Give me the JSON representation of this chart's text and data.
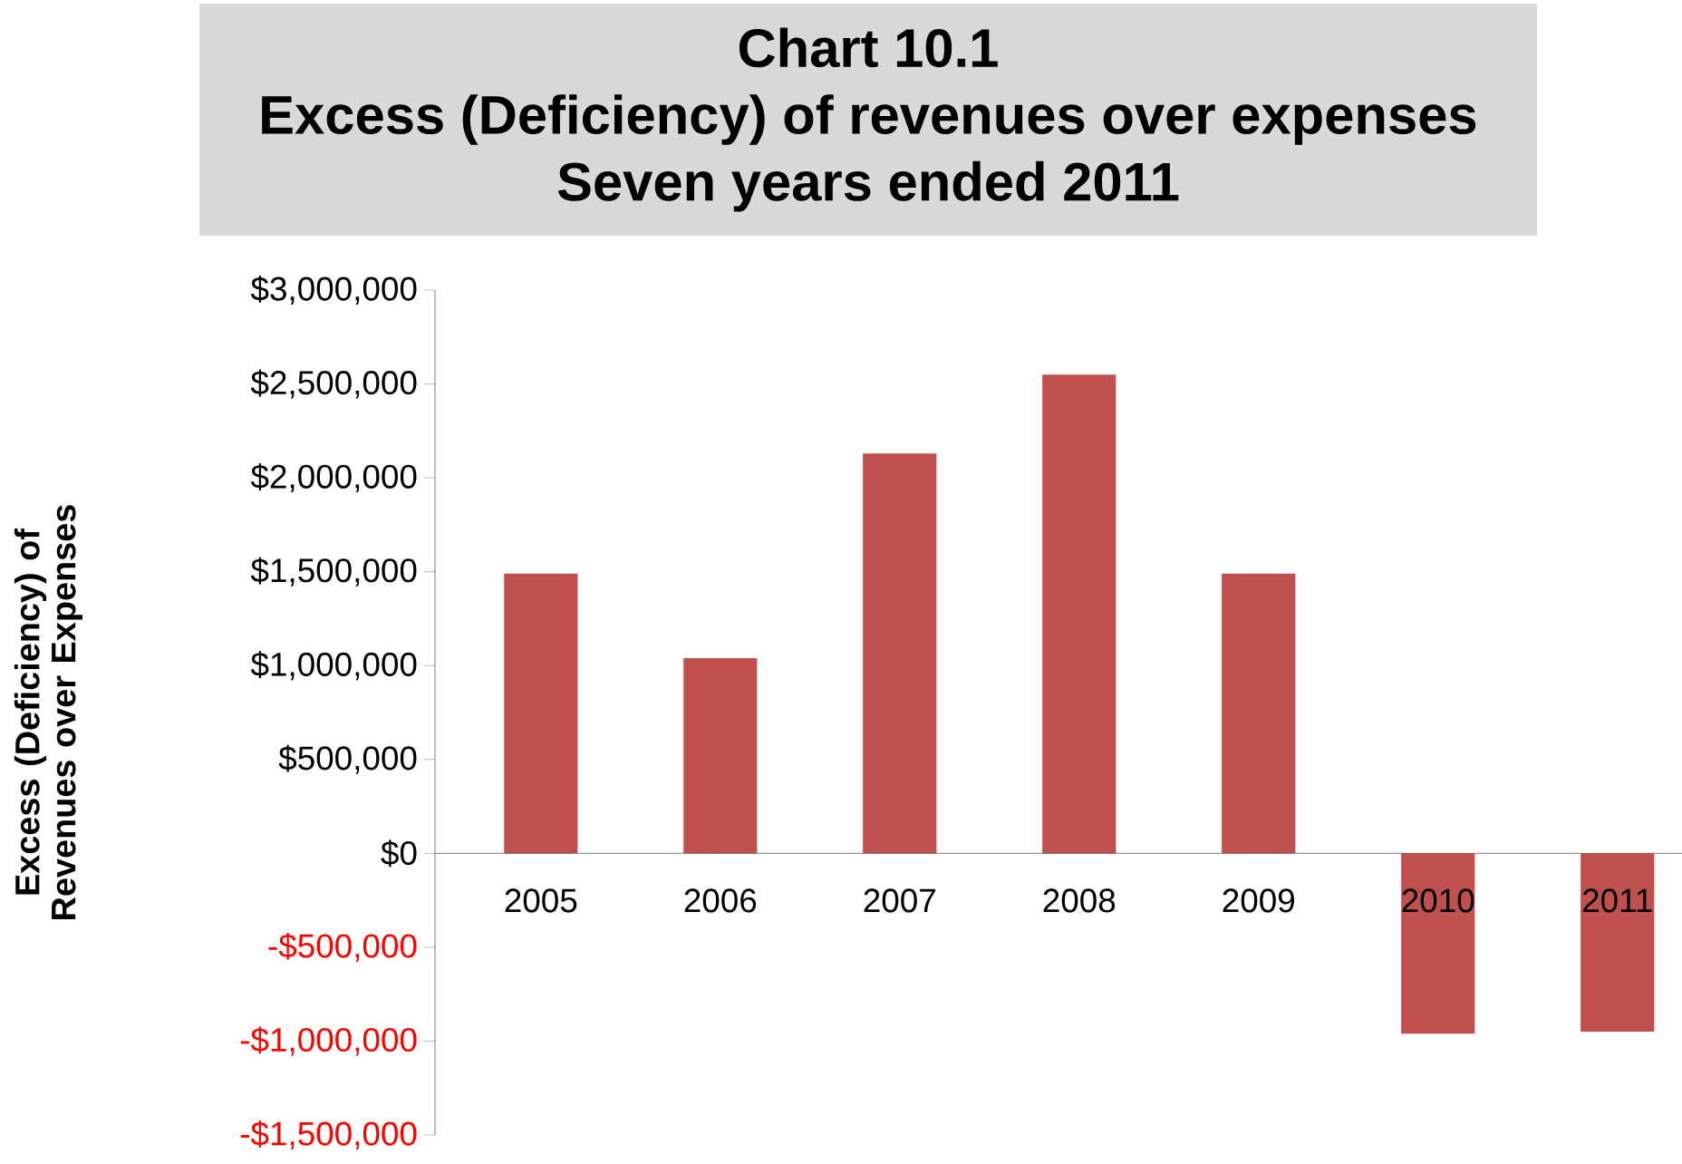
{
  "chart_data": {
    "type": "bar",
    "title": "Chart 10.1",
    "subtitle": "Excess (Deficiency) of revenues over expenses",
    "annotations": [
      "Seven years ended 2011"
    ],
    "ylabel": "Excess (Deficiency) of Revenues over Expenses",
    "categories": [
      "2005",
      "2006",
      "2007",
      "2008",
      "2009",
      "2010",
      "2011"
    ],
    "values": [
      1490000,
      1040000,
      2130000,
      2550000,
      1490000,
      -960000,
      -950000
    ],
    "color": "#c0504d",
    "ylim": [
      -1500000,
      3000000
    ],
    "yticks": [
      {
        "value": -1500000,
        "label": "-$1,500,000"
      },
      {
        "value": -1000000,
        "label": "-$1,000,000"
      },
      {
        "value": -500000,
        "label": "-$500,000"
      },
      {
        "value": 0,
        "label": "$0"
      },
      {
        "value": 500000,
        "label": "$500,000"
      },
      {
        "value": 1000000,
        "label": "$1,000,000"
      },
      {
        "value": 1500000,
        "label": "$1,500,000"
      },
      {
        "value": 2000000,
        "label": "$2,000,000"
      },
      {
        "value": 2500000,
        "label": "$2,500,000"
      },
      {
        "value": 3000000,
        "label": "$3,000,000"
      }
    ],
    "grid": false
  }
}
